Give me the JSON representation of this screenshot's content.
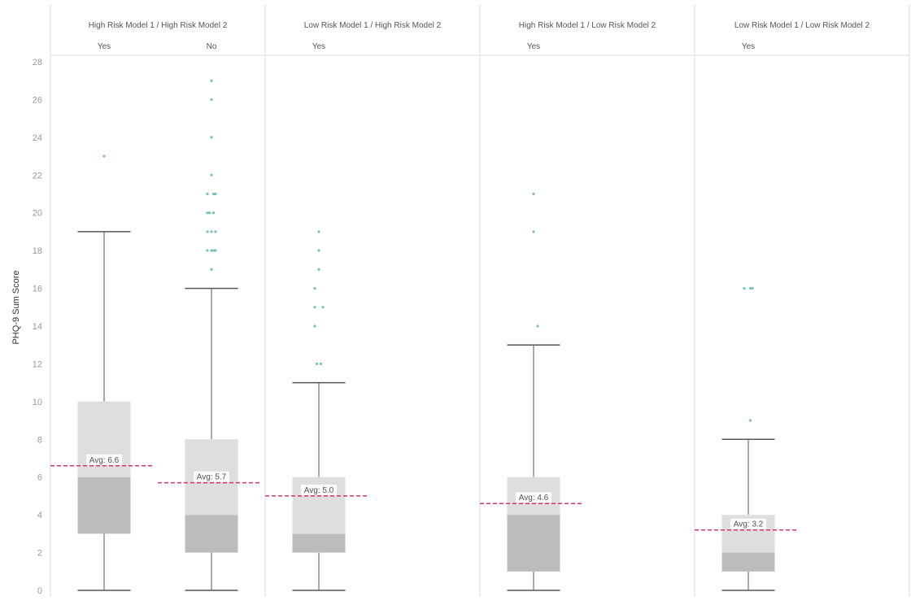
{
  "chart_data": {
    "type": "boxplot",
    "ylabel": "PHQ-9 Sum Score",
    "ylim": [
      0,
      28
    ],
    "yticks": [
      0,
      2,
      4,
      6,
      8,
      10,
      12,
      14,
      16,
      18,
      20,
      22,
      24,
      26,
      28
    ],
    "avg_prefix": "Avg: ",
    "colors": {
      "box_lower": "#bdbcbd",
      "box_upper": "#dedede",
      "whisker": "#555555",
      "outlier": "#76c1b8",
      "avg_line": "#d6336c",
      "divider": "#dddddd"
    },
    "groups": [
      {
        "label": "High Risk Model 1 / High Risk Model 2",
        "series": [
          {
            "label": "Yes",
            "min": 0,
            "q1": 3,
            "median": 6,
            "q3": 10,
            "max": 19,
            "avg": 6.6,
            "avg_label": "6.6",
            "outliers": [
              [
                0,
                23
              ]
            ]
          },
          {
            "label": "No",
            "min": 0,
            "q1": 2,
            "median": 4,
            "q3": 8,
            "max": 16,
            "avg": 5.7,
            "avg_label": "5.7",
            "outliers": [
              [
                0,
                27
              ],
              [
                0,
                26
              ],
              [
                0,
                24
              ],
              [
                0,
                22
              ],
              [
                -1,
                21
              ],
              [
                0.5,
                21
              ],
              [
                1,
                21
              ],
              [
                -1,
                20
              ],
              [
                -0.5,
                20
              ],
              [
                0.5,
                20
              ],
              [
                -1,
                19
              ],
              [
                0,
                19
              ],
              [
                1,
                19
              ],
              [
                -1,
                18
              ],
              [
                0,
                18
              ],
              [
                0.5,
                18
              ],
              [
                1,
                18
              ],
              [
                0,
                17
              ]
            ]
          }
        ]
      },
      {
        "label": "Low Risk Model 1 / High Risk Model 2",
        "series": [
          {
            "label": "Yes",
            "min": 0,
            "q1": 2,
            "median": 3,
            "q3": 6,
            "max": 11,
            "avg": 5.0,
            "avg_label": "5.0",
            "outliers": [
              [
                0,
                19
              ],
              [
                0,
                18
              ],
              [
                0,
                17
              ],
              [
                -1,
                16
              ],
              [
                -1,
                15
              ],
              [
                1,
                15
              ],
              [
                -1,
                14
              ],
              [
                -0.5,
                12
              ],
              [
                0.5,
                12
              ]
            ]
          }
        ]
      },
      {
        "label": "High Risk Model 1 / Low Risk Model 2",
        "series": [
          {
            "label": "Yes",
            "min": 0,
            "q1": 1,
            "median": 4,
            "q3": 6,
            "max": 13,
            "avg": 4.6,
            "avg_label": "4.6",
            "outliers": [
              [
                0,
                21
              ],
              [
                0,
                19
              ],
              [
                1,
                14
              ]
            ]
          }
        ]
      },
      {
        "label": "Low Risk Model 1 / Low Risk Model 2",
        "series": [
          {
            "label": "Yes",
            "min": 0,
            "q1": 1,
            "median": 2,
            "q3": 4,
            "max": 8,
            "avg": 3.2,
            "avg_label": "3.2",
            "outliers": [
              [
                -1,
                16
              ],
              [
                0.5,
                16
              ],
              [
                1,
                16
              ],
              [
                0.5,
                9
              ]
            ]
          }
        ]
      }
    ]
  }
}
